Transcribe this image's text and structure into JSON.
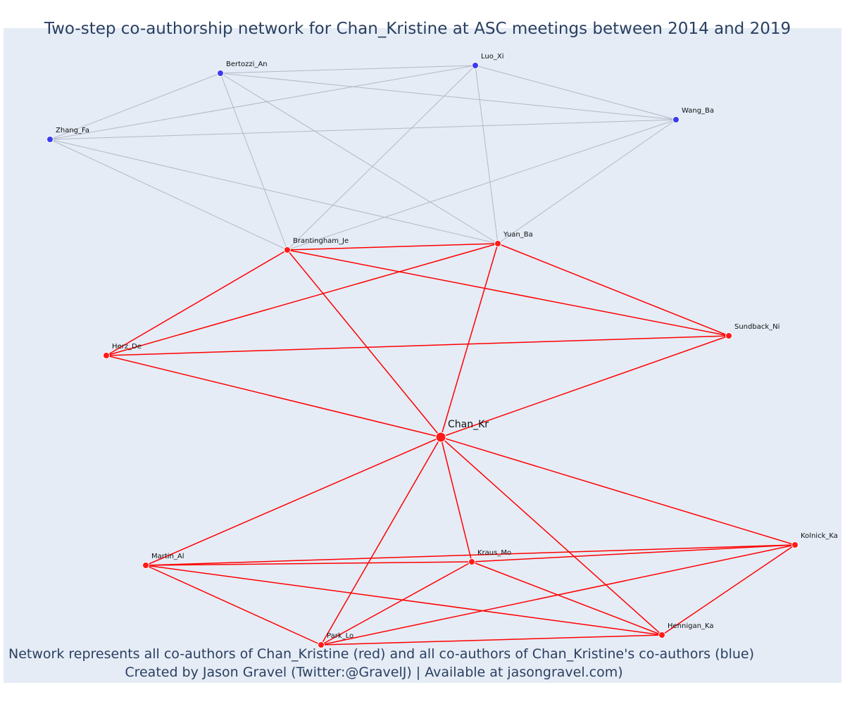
{
  "title": "Two-step co-authorship network for Chan_Kristine at ASC meetings between 2014 and 2019",
  "captions": [
    "Network represents all co-authors of Chan_Kristine (red) and all co-authors of Chan_Kristine's co-authors (blue)",
    "Created by Jason Gravel (Twitter:@GravelJ) | Available at jasongravel.com)"
  ],
  "colors": {
    "background": "#e5ecf6",
    "red_node": "#ff1a1a",
    "blue_node": "#3b3bf0",
    "red_edge": "#ff0000",
    "gray_edge": "#b4b8c6"
  },
  "network": {
    "nodes": [
      {
        "id": "Chan_Kr",
        "group": "center"
      },
      {
        "id": "Bertozzi_An",
        "group": "blue"
      },
      {
        "id": "Luo_Xi",
        "group": "blue"
      },
      {
        "id": "Wang_Ba",
        "group": "blue"
      },
      {
        "id": "Zhang_Fa",
        "group": "blue"
      },
      {
        "id": "Brantingham_Je",
        "group": "red"
      },
      {
        "id": "Yuan_Ba",
        "group": "red"
      },
      {
        "id": "Herz_De",
        "group": "red"
      },
      {
        "id": "Sundback_Ni",
        "group": "red"
      },
      {
        "id": "Martin_Al",
        "group": "red"
      },
      {
        "id": "Kraus_Mo",
        "group": "red"
      },
      {
        "id": "Kolnick_Ka",
        "group": "red"
      },
      {
        "id": "Park_Lo",
        "group": "red"
      },
      {
        "id": "Hennigan_Ka",
        "group": "red"
      }
    ],
    "edges_gray": [
      [
        "Bertozzi_An",
        "Luo_Xi"
      ],
      [
        "Bertozzi_An",
        "Zhang_Fa"
      ],
      [
        "Bertozzi_An",
        "Wang_Ba"
      ],
      [
        "Bertozzi_An",
        "Brantingham_Je"
      ],
      [
        "Bertozzi_An",
        "Yuan_Ba"
      ],
      [
        "Luo_Xi",
        "Zhang_Fa"
      ],
      [
        "Luo_Xi",
        "Wang_Ba"
      ],
      [
        "Luo_Xi",
        "Brantingham_Je"
      ],
      [
        "Luo_Xi",
        "Yuan_Ba"
      ],
      [
        "Zhang_Fa",
        "Wang_Ba"
      ],
      [
        "Zhang_Fa",
        "Brantingham_Je"
      ],
      [
        "Zhang_Fa",
        "Yuan_Ba"
      ],
      [
        "Wang_Ba",
        "Brantingham_Je"
      ],
      [
        "Wang_Ba",
        "Yuan_Ba"
      ]
    ],
    "edges_red": [
      [
        "Brantingham_Je",
        "Yuan_Ba"
      ],
      [
        "Brantingham_Je",
        "Herz_De"
      ],
      [
        "Brantingham_Je",
        "Sundback_Ni"
      ],
      [
        "Brantingham_Je",
        "Chan_Kr"
      ],
      [
        "Yuan_Ba",
        "Herz_De"
      ],
      [
        "Yuan_Ba",
        "Sundback_Ni"
      ],
      [
        "Yuan_Ba",
        "Chan_Kr"
      ],
      [
        "Herz_De",
        "Sundback_Ni"
      ],
      [
        "Herz_De",
        "Chan_Kr"
      ],
      [
        "Sundback_Ni",
        "Chan_Kr"
      ],
      [
        "Chan_Kr",
        "Martin_Al"
      ],
      [
        "Chan_Kr",
        "Kraus_Mo"
      ],
      [
        "Chan_Kr",
        "Kolnick_Ka"
      ],
      [
        "Chan_Kr",
        "Park_Lo"
      ],
      [
        "Chan_Kr",
        "Hennigan_Ka"
      ],
      [
        "Martin_Al",
        "Kraus_Mo"
      ],
      [
        "Martin_Al",
        "Kolnick_Ka"
      ],
      [
        "Martin_Al",
        "Park_Lo"
      ],
      [
        "Martin_Al",
        "Hennigan_Ka"
      ],
      [
        "Kraus_Mo",
        "Kolnick_Ka"
      ],
      [
        "Kraus_Mo",
        "Park_Lo"
      ],
      [
        "Kraus_Mo",
        "Hennigan_Ka"
      ],
      [
        "Kolnick_Ka",
        "Park_Lo"
      ],
      [
        "Kolnick_Ka",
        "Hennigan_Ka"
      ],
      [
        "Park_Lo",
        "Hennigan_Ka"
      ]
    ]
  }
}
